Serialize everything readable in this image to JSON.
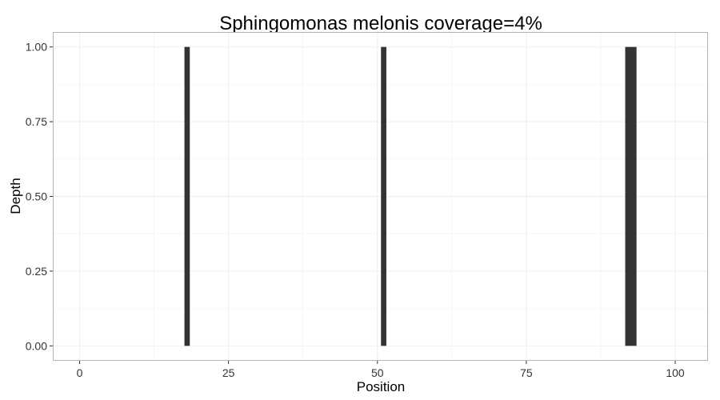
{
  "chart_data": {
    "type": "bar",
    "title": "Sphingomonas melonis coverage=4%",
    "xlabel": "Position",
    "ylabel": "Depth",
    "xlim": [
      -4.5,
      105.5
    ],
    "ylim": [
      -0.05,
      1.05
    ],
    "x_ticks": [
      0,
      25,
      50,
      75,
      100
    ],
    "x_tick_labels": [
      "0",
      "25",
      "50",
      "75",
      "100"
    ],
    "y_ticks": [
      0,
      0.25,
      0.5,
      0.75,
      1
    ],
    "y_tick_labels": [
      "0.00",
      "0.25",
      "0.50",
      "0.75",
      "1.00"
    ],
    "grid": true,
    "bars": [
      {
        "x_start": 17.6,
        "x_end": 18.5,
        "value": 1
      },
      {
        "x_start": 50.6,
        "x_end": 51.5,
        "value": 1
      },
      {
        "x_start": 91.6,
        "x_end": 93.5,
        "value": 1
      }
    ],
    "colors": {
      "bar": "#333333",
      "panel_border": "#b3b3b3",
      "grid": "#f0f0f0",
      "tick": "#333333"
    }
  }
}
